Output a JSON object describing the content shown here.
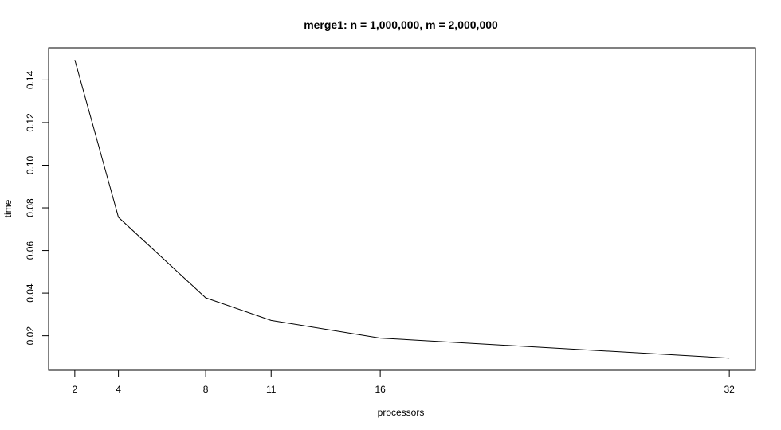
{
  "chart_data": {
    "type": "line",
    "title": "merge1: n = 1,000,000, m = 2,000,000",
    "xlabel": "processors",
    "ylabel": "time",
    "x": [
      2,
      4,
      8,
      11,
      16,
      32
    ],
    "x_tick_labels": [
      "2",
      "4",
      "8",
      "11",
      "16",
      "32"
    ],
    "y_ticks": [
      0.02,
      0.04,
      0.06,
      0.08,
      0.1,
      0.12,
      0.14
    ],
    "y_tick_labels": [
      "0.02",
      "0.04",
      "0.06",
      "0.08",
      "0.10",
      "0.12",
      "0.14"
    ],
    "series": [
      {
        "values": [
          0.1494,
          0.0756,
          0.0378,
          0.0272,
          0.0189,
          0.0095
        ]
      }
    ],
    "xlim": [
      0.8,
      33.2
    ],
    "ylim": [
      0.0038,
      0.1551
    ],
    "grid": false,
    "line_color": "#000000"
  }
}
